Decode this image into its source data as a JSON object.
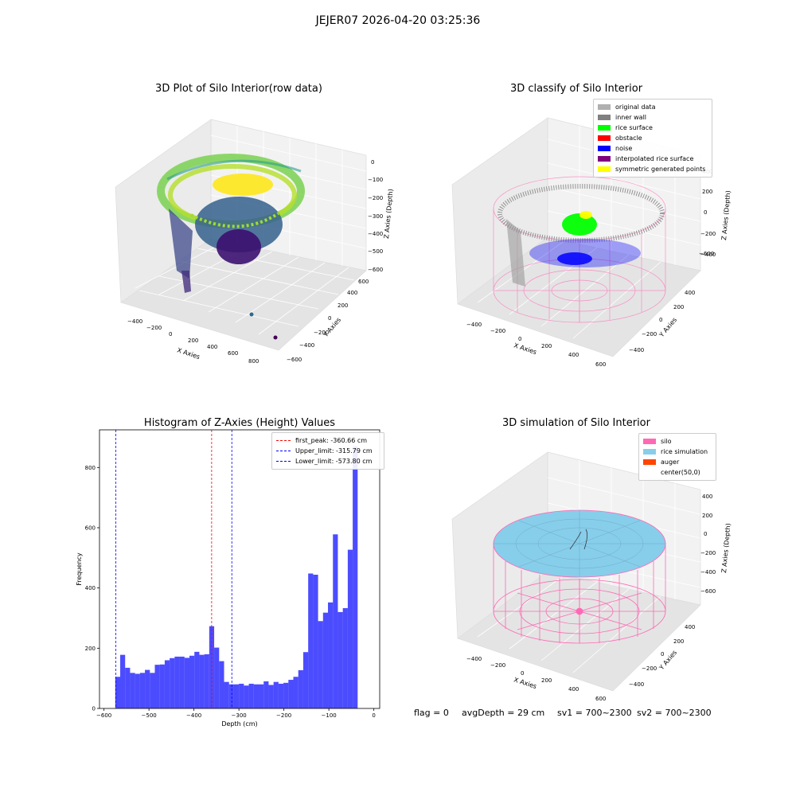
{
  "suptitle": "JEJER07 2026-04-20 03:25:36",
  "status": {
    "flag": "flag = 0",
    "avg_depth": "avgDepth = 29 cm",
    "sv1": "sv1 = 700~2300",
    "sv2": "sv2 = 700~2300"
  },
  "chart_data": [
    {
      "type": "scatter",
      "title": "3D Plot of Silo Interior(row data)",
      "xlabel": "X Axies",
      "ylabel": "Y Axies",
      "zlabel": "Z Axies (Depth)",
      "x_ticks": [
        "−400",
        "−200",
        "0",
        "200",
        "400",
        "600",
        "800"
      ],
      "y_ticks": [
        "−600",
        "−400",
        "−200",
        "0",
        "200",
        "400",
        "600"
      ],
      "z_ticks": [
        "0",
        "−100",
        "−200",
        "−300",
        "−400",
        "−500",
        "−600"
      ],
      "colormap": "viridis"
    },
    {
      "type": "scatter",
      "title": "3D classify of Silo Interior",
      "xlabel": "X Axies",
      "ylabel": "Y Axies",
      "zlabel": "Z Axies (Depth)",
      "x_ticks": [
        "−400",
        "−200",
        "0",
        "200",
        "400",
        "600"
      ],
      "y_ticks": [
        "−400",
        "−200",
        "0",
        "200",
        "400"
      ],
      "z_ticks": [
        "400",
        "200",
        "0",
        "−200",
        "−400",
        "−600"
      ],
      "legend_position": "top-right",
      "legend": [
        {
          "label": "original data",
          "color": "#b0b0b0"
        },
        {
          "label": "inner wall",
          "color": "#808080"
        },
        {
          "label": "rice surface",
          "color": "#00ff00"
        },
        {
          "label": "obstacle",
          "color": "#ff0000"
        },
        {
          "label": "noise",
          "color": "#0000ff"
        },
        {
          "label": "interpolated rice surface",
          "color": "#800080"
        },
        {
          "label": "symmetric generated points",
          "color": "#ffff00"
        }
      ]
    },
    {
      "type": "bar",
      "title": "Histogram of Z-Axies (Height) Values",
      "xlabel": "Depth (cm)",
      "ylabel": "Frequency",
      "xlim": [
        -610,
        13
      ],
      "ylim": [
        0,
        925
      ],
      "x_ticks": [
        -600,
        -500,
        -400,
        -300,
        -200,
        -100,
        0
      ],
      "x_tick_labels": [
        "−600",
        "−500",
        "−400",
        "−300",
        "−200",
        "−100",
        "0"
      ],
      "y_ticks": [
        0,
        200,
        400,
        600,
        800
      ],
      "bar_color": "#0000ff",
      "bin_start": -575,
      "bin_width": 11,
      "counts": [
        105,
        178,
        135,
        118,
        115,
        118,
        128,
        118,
        145,
        146,
        160,
        167,
        172,
        172,
        168,
        175,
        188,
        178,
        180,
        273,
        202,
        157,
        88,
        80,
        80,
        82,
        76,
        82,
        80,
        80,
        90,
        78,
        88,
        82,
        85,
        95,
        105,
        127,
        187,
        448,
        444,
        290,
        318,
        352,
        578,
        320,
        333,
        527,
        870
      ],
      "legend_position": "top-right",
      "vlines": [
        {
          "label": "first_peak: -360.66 cm",
          "x": -360.66,
          "color": "#ff0000"
        },
        {
          "label": "Upper_limit: -315.79 cm",
          "x": -315.79,
          "color": "#0000ff"
        },
        {
          "label": "Lower_limit: -573.80 cm",
          "x": -573.8,
          "color": "#0000ff"
        }
      ]
    },
    {
      "type": "area",
      "title": "3D simulation of Silo Interior",
      "xlabel": "X Axies",
      "ylabel": "Y Axies",
      "zlabel": "Z Axies (Depth)",
      "x_ticks": [
        "−400",
        "−200",
        "0",
        "200",
        "400",
        "600"
      ],
      "y_ticks": [
        "−400",
        "−200",
        "0",
        "200",
        "400"
      ],
      "z_ticks": [
        "400",
        "200",
        "0",
        "−200",
        "−400",
        "−600"
      ],
      "legend_position": "top-right",
      "legend": [
        {
          "label": "silo",
          "color": "#ff69b4"
        },
        {
          "label": "rice simulation",
          "color": "#87ceeb"
        },
        {
          "label": "auger",
          "color": "#ff4500"
        },
        {
          "label": "center(50,0)",
          "color": "#ffffff"
        }
      ]
    }
  ]
}
